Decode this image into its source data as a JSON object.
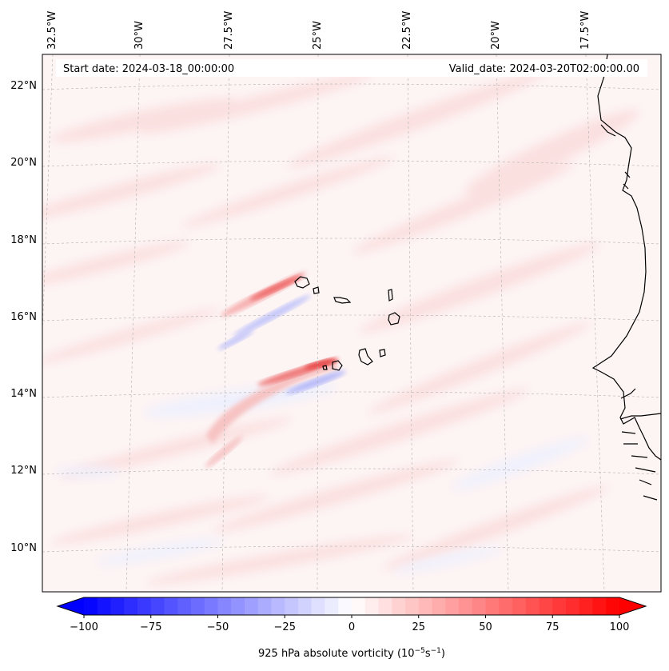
{
  "header": {
    "start_label": "Start date: 2024-03-18_00:00:00",
    "valid_label": "Valid_date: 2024-03-20T02:00:00.00"
  },
  "longitude_ticks": [
    "32.5°W",
    "30°W",
    "27.5°W",
    "25°W",
    "22.5°W",
    "20°W",
    "17.5°W"
  ],
  "latitude_ticks": [
    "22°N",
    "20°N",
    "18°N",
    "16°N",
    "14°N",
    "12°N",
    "10°N"
  ],
  "colorbar": {
    "title": "925 hPa absolute vorticity (10",
    "exp1": "−5",
    "mid": "s",
    "exp2": "−1",
    "close": ")",
    "tick_labels": [
      "−100",
      "−75",
      "−50",
      "−25",
      "0",
      "25",
      "50",
      "75",
      "100"
    ],
    "vmin": -100,
    "vmax": 100,
    "level_step": 5,
    "cmap": "bwr"
  },
  "colors": {
    "negative": "#0000ff",
    "zero": "#ffffff",
    "positive": "#ff0000",
    "coastline": "#000000",
    "gridline": "#b0b0b0"
  }
}
